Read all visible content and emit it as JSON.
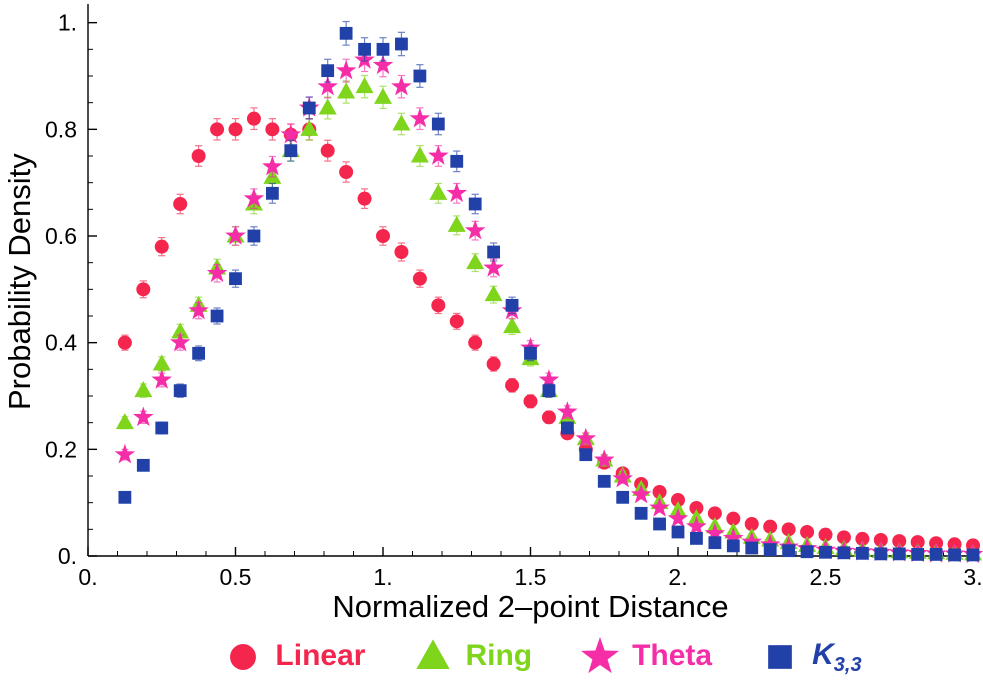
{
  "figure": {
    "background": "#ffffff"
  },
  "chart_data": {
    "type": "scatter",
    "title": "",
    "xlabel": "Normalized 2–point Distance",
    "ylabel": "Probability Density",
    "xlim": [
      0,
      3
    ],
    "ylim": [
      0,
      1.02
    ],
    "grid": false,
    "x_ticks": {
      "values": [
        0,
        0.5,
        1,
        1.5,
        2,
        2.5,
        3
      ],
      "labels": [
        "0.",
        "0.5",
        "1.",
        "1.5",
        "2.",
        "2.5",
        "3."
      ]
    },
    "y_ticks": {
      "values": [
        0,
        0.2,
        0.4,
        0.6,
        0.8,
        1.0
      ],
      "labels": [
        "0.",
        "0.2",
        "0.4",
        "0.6",
        "0.8",
        "1."
      ]
    },
    "x": [
      0.125,
      0.1875,
      0.25,
      0.3125,
      0.375,
      0.4375,
      0.5,
      0.5625,
      0.625,
      0.6875,
      0.75,
      0.8125,
      0.875,
      0.9375,
      1.0,
      1.0625,
      1.125,
      1.1875,
      1.25,
      1.3125,
      1.375,
      1.4375,
      1.5,
      1.5625,
      1.625,
      1.6875,
      1.75,
      1.8125,
      1.875,
      1.9375,
      2.0,
      2.0625,
      2.125,
      2.1875,
      2.25,
      2.3125,
      2.375,
      2.4375,
      2.5,
      2.5625,
      2.625,
      2.6875,
      2.75,
      2.8125,
      2.875,
      2.9375,
      3.0
    ],
    "series": [
      {
        "name": "Linear",
        "marker": "circle",
        "color": "#f4264e",
        "err": 0.02,
        "values": [
          0.4,
          0.5,
          0.58,
          0.66,
          0.75,
          0.8,
          0.8,
          0.82,
          0.8,
          0.79,
          0.8,
          0.76,
          0.72,
          0.67,
          0.6,
          0.57,
          0.52,
          0.47,
          0.44,
          0.4,
          0.36,
          0.32,
          0.29,
          0.26,
          0.23,
          0.2,
          0.175,
          0.155,
          0.135,
          0.12,
          0.105,
          0.09,
          0.08,
          0.07,
          0.06,
          0.055,
          0.05,
          0.045,
          0.04,
          0.035,
          0.032,
          0.03,
          0.028,
          0.026,
          0.024,
          0.022,
          0.02
        ]
      },
      {
        "name": "Ring",
        "marker": "triangle",
        "color": "#7fd41c",
        "err": 0.02,
        "values": [
          0.25,
          0.31,
          0.36,
          0.42,
          0.47,
          0.54,
          0.6,
          0.66,
          0.71,
          0.76,
          0.8,
          0.84,
          0.87,
          0.88,
          0.86,
          0.81,
          0.75,
          0.68,
          0.62,
          0.55,
          0.49,
          0.43,
          0.37,
          0.31,
          0.26,
          0.22,
          0.18,
          0.15,
          0.125,
          0.1,
          0.085,
          0.07,
          0.055,
          0.045,
          0.035,
          0.03,
          0.025,
          0.02,
          0.016,
          0.013,
          0.011,
          0.009,
          0.008,
          0.007,
          0.006,
          0.005,
          0.004
        ]
      },
      {
        "name": "Theta",
        "marker": "star",
        "color": "#f52ea8",
        "err": 0.02,
        "values": [
          0.19,
          0.26,
          0.33,
          0.4,
          0.46,
          0.53,
          0.6,
          0.67,
          0.73,
          0.79,
          0.84,
          0.88,
          0.91,
          0.93,
          0.92,
          0.88,
          0.82,
          0.75,
          0.68,
          0.61,
          0.54,
          0.46,
          0.39,
          0.33,
          0.27,
          0.22,
          0.18,
          0.145,
          0.115,
          0.09,
          0.07,
          0.055,
          0.042,
          0.033,
          0.026,
          0.021,
          0.017,
          0.014,
          0.011,
          0.009,
          0.008,
          0.007,
          0.006,
          0.005,
          0.004,
          0.004,
          0.003
        ]
      },
      {
        "name": "K3,3",
        "marker": "square",
        "color": "#2140a8",
        "err": 0.02,
        "values": [
          0.11,
          0.17,
          0.24,
          0.31,
          0.38,
          0.45,
          0.52,
          0.6,
          0.68,
          0.76,
          0.84,
          0.91,
          0.98,
          0.95,
          0.95,
          0.96,
          0.9,
          0.81,
          0.74,
          0.66,
          0.57,
          0.47,
          0.38,
          0.31,
          0.24,
          0.19,
          0.14,
          0.11,
          0.08,
          0.06,
          0.045,
          0.033,
          0.025,
          0.019,
          0.015,
          0.012,
          0.01,
          0.008,
          0.007,
          0.006,
          0.005,
          0.004,
          0.004,
          0.003,
          0.003,
          0.002,
          0.002
        ]
      }
    ],
    "legend": {
      "position": "bottom",
      "items": [
        {
          "label": "Linear",
          "subscript": ""
        },
        {
          "label": "Ring",
          "subscript": ""
        },
        {
          "label": "Theta",
          "subscript": ""
        },
        {
          "label": "K",
          "subscript": "3,3"
        }
      ]
    }
  }
}
